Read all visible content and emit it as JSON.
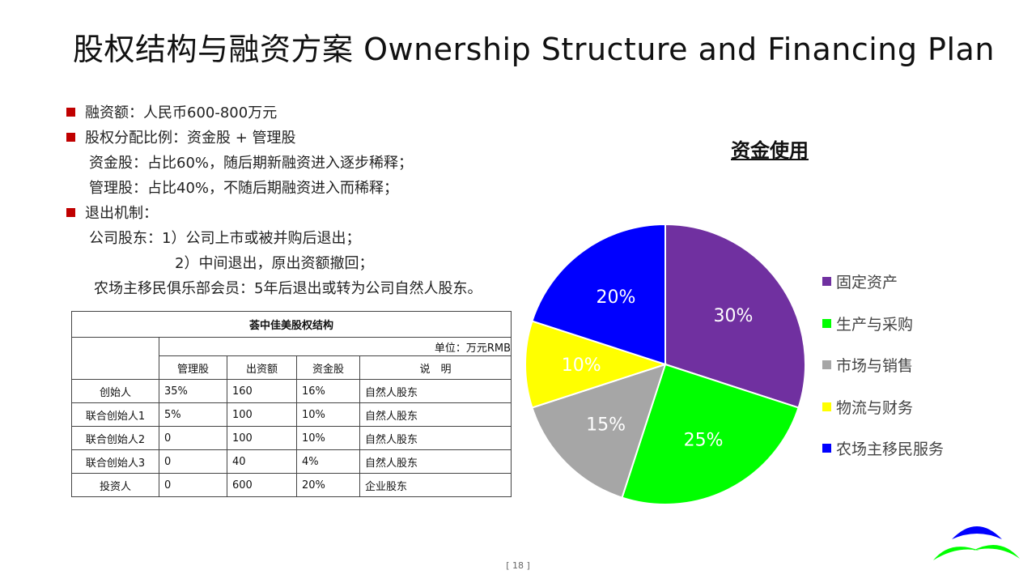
{
  "slide": {
    "title": "股权结构与融资方案  Ownership Structure and Financing Plan",
    "page_number": "[ 18 ]"
  },
  "bullets": {
    "financing": "融资额：人民币600-800万元",
    "ratio": "股权分配比例：资金股 + 管理股",
    "capital_share": "资金股：占比60%，随后期新融资进入逐步稀释；",
    "management_share": "管理股：占比40%，不随后期融资进入而稀释；",
    "exit": "退出机制：",
    "company_holders": "公司股东：1）公司上市或被并购后退出；",
    "company_holders_2": "2）中间退出，原出资额撤回；",
    "club_members": "农场主移民俱乐部会员：5年后退出或转为公司自然人股东。"
  },
  "table": {
    "caption": "荟中佳美股权结构",
    "unit": "单位：万元RMB",
    "headers": [
      "管理股",
      "出资额",
      "资金股",
      "说　明"
    ],
    "rows": [
      {
        "name": "创始人",
        "mgmt": "35%",
        "amount": "160",
        "capital": "16%",
        "note": "自然人股东"
      },
      {
        "name": "联合创始人1",
        "mgmt": "5%",
        "amount": "100",
        "capital": "10%",
        "note": "自然人股东"
      },
      {
        "name": "联合创始人2",
        "mgmt": "0",
        "amount": "100",
        "capital": "10%",
        "note": "自然人股东"
      },
      {
        "name": "联合创始人3",
        "mgmt": "0",
        "amount": "40",
        "capital": "4%",
        "note": "自然人股东"
      },
      {
        "name": "投资人",
        "mgmt": "0",
        "amount": "600",
        "capital": "20%",
        "note": "企业股东"
      }
    ]
  },
  "chart_data": {
    "type": "pie",
    "title": "资金使用",
    "categories": [
      "固定资产",
      "生产与采购",
      "市场与销售",
      "物流与财务",
      "农场主移民服务"
    ],
    "values": [
      30,
      25,
      15,
      10,
      20
    ],
    "labels": [
      "30%",
      "25%",
      "15%",
      "10%",
      "20%"
    ],
    "colors": [
      "#7030a0",
      "#00ff00",
      "#a6a6a6",
      "#ffff00",
      "#0000ff"
    ],
    "label_colors": [
      "#ffffff",
      "#ffffff",
      "#ffffff",
      "#ffffff",
      "#ffffff"
    ],
    "legend_position": "right"
  },
  "logo": {
    "colors": [
      "#0000ff",
      "#00ff00"
    ]
  }
}
